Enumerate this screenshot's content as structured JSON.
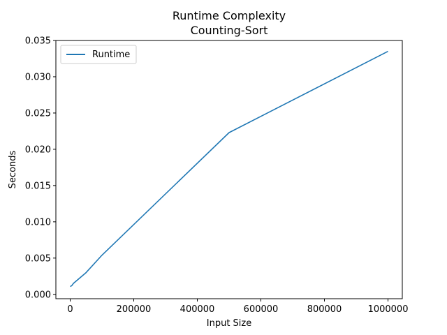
{
  "chart_data": {
    "type": "line",
    "title": "Runtime Complexity",
    "subtitle": "Counting-Sort",
    "xlabel": "Input Size",
    "ylabel": "Seconds",
    "xlim": [
      -45000,
      1045000
    ],
    "ylim": [
      -0.0006,
      0.035
    ],
    "xticks": [
      0,
      200000,
      400000,
      600000,
      800000,
      1000000
    ],
    "xtick_labels": [
      "0",
      "200000",
      "400000",
      "600000",
      "800000",
      "1000000"
    ],
    "yticks": [
      0.0,
      0.005,
      0.01,
      0.015,
      0.02,
      0.025,
      0.03,
      0.035
    ],
    "ytick_labels": [
      "0.000",
      "0.005",
      "0.010",
      "0.015",
      "0.020",
      "0.025",
      "0.030",
      "0.035"
    ],
    "grid": false,
    "legend_position": "upper-left",
    "series": [
      {
        "name": "Runtime",
        "color": "#1f77b4",
        "x": [
          100,
          1000,
          5000,
          10000,
          50000,
          100000,
          500000,
          1000000
        ],
        "y": [
          0.0011,
          0.0011,
          0.0012,
          0.0015,
          0.003,
          0.0054,
          0.0223,
          0.0335
        ]
      }
    ]
  }
}
